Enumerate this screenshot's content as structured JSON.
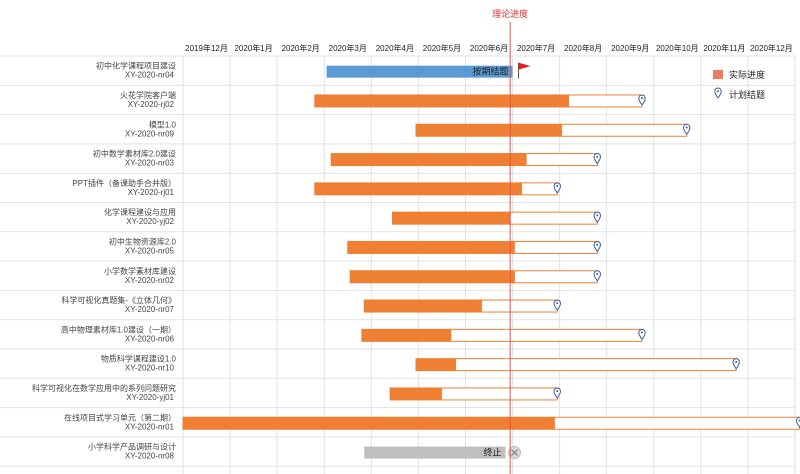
{
  "header": {
    "theory_progress_label": "理论进度"
  },
  "legend": {
    "actual_label": "实际进度",
    "planned_label": "计划结题"
  },
  "chart_data": {
    "type": "gantt",
    "months": [
      "2019年12月",
      "2020年1月",
      "2020年2月",
      "2020年3月",
      "2020年4月",
      "2020年5月",
      "2020年6月",
      "2020年7月",
      "2020年8月",
      "2020年9月",
      "2020年10月",
      "2020年11月",
      "2020年12月"
    ],
    "today_marker": 6.95,
    "colors": {
      "actual": "#ee7f33",
      "completed": "#5b9bd5",
      "terminated": "#bfbfbf",
      "today": "#e85050",
      "flag": "#e02020",
      "legend_actual": "#ed7d60"
    },
    "tasks": [
      {
        "name": "初中化学课程项目建设",
        "code": "XY-2020-nr04",
        "start": 3.05,
        "actual_end": 7.0,
        "plan_end": null,
        "status": "completed",
        "status_text": "按期结题"
      },
      {
        "name": "火花学院客户端",
        "code": "XY-2020-rj02",
        "start": 2.8,
        "actual_end": 8.2,
        "plan_end": 9.75,
        "status": "active",
        "status_text": ""
      },
      {
        "name": "模型1.0",
        "code": "XY-2020-nr09",
        "start": 4.95,
        "actual_end": 8.05,
        "plan_end": 10.7,
        "status": "active",
        "status_text": ""
      },
      {
        "name": "初中数学素材库2.0建设",
        "code": "XY-2020-nr03",
        "start": 3.15,
        "actual_end": 7.3,
        "plan_end": 8.8,
        "status": "active",
        "status_text": ""
      },
      {
        "name": "PPT插件（备课助手合并版）",
        "code": "XY-2020-rj01",
        "start": 2.8,
        "actual_end": 7.2,
        "plan_end": 7.95,
        "status": "active",
        "status_text": ""
      },
      {
        "name": "化学课程建设与应用",
        "code": "XY-2020-yj02",
        "start": 4.45,
        "actual_end": 6.95,
        "plan_end": 8.8,
        "status": "active",
        "status_text": ""
      },
      {
        "name": "初中生物资源库2.0",
        "code": "XY-2020-nr05",
        "start": 3.5,
        "actual_end": 7.05,
        "plan_end": 8.8,
        "status": "active",
        "status_text": ""
      },
      {
        "name": "小学数学素材库建设",
        "code": "XY-2020-nr02",
        "start": 3.55,
        "actual_end": 7.05,
        "plan_end": 8.8,
        "status": "active",
        "status_text": ""
      },
      {
        "name": "科学可视化真题集-《立体几何》",
        "code": "XY-2020-nr07",
        "start": 3.85,
        "actual_end": 6.35,
        "plan_end": 7.95,
        "status": "active",
        "status_text": ""
      },
      {
        "name": "高中物理素材库1.0建设（一期）",
        "code": "XY-2020-nr06",
        "start": 3.8,
        "actual_end": 5.7,
        "plan_end": 9.75,
        "status": "active",
        "status_text": ""
      },
      {
        "name": "物质科学课程建设1.0",
        "code": "XY-2020-nr10",
        "start": 4.95,
        "actual_end": 5.8,
        "plan_end": 11.75,
        "status": "active",
        "status_text": ""
      },
      {
        "name": "科学可视化在数学应用中的系列问题研究",
        "code": "XY-2020-yj01",
        "start": 4.4,
        "actual_end": 5.5,
        "plan_end": 7.95,
        "status": "active",
        "status_text": ""
      },
      {
        "name": "在线项目式学习单元（第二期）",
        "code": "XY-2020-nr01",
        "start": 0.0,
        "actual_end": 7.9,
        "plan_end": 13.1,
        "status": "active",
        "status_text": ""
      },
      {
        "name": "小学科学产品调研与设计",
        "code": "XY-2020-nr08",
        "start": 3.85,
        "actual_end": 6.85,
        "plan_end": null,
        "status": "terminated",
        "status_text": "终止"
      }
    ]
  }
}
